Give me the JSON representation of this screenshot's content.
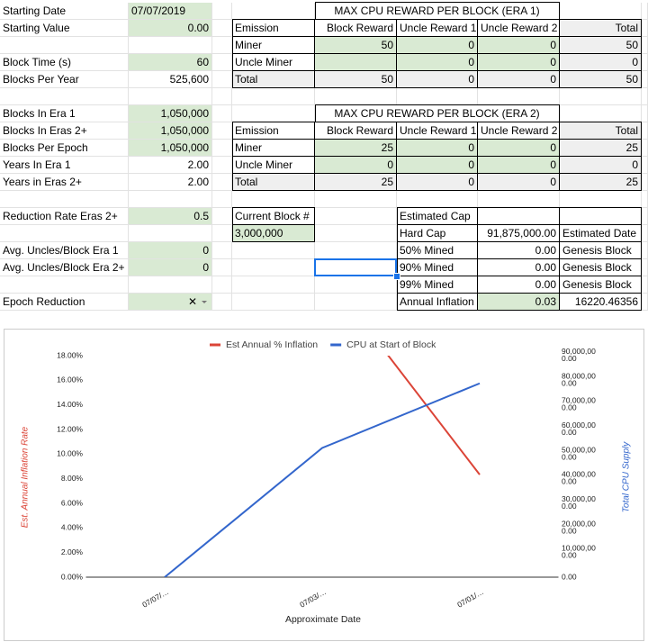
{
  "sheet": {
    "rows": [
      [
        "Starting Date",
        "07/07/2019",
        null,
        "MAX CPU REWARD PER BLOCK (ERA 1)",
        null,
        null,
        null
      ],
      [
        "Starting Value",
        "0.00",
        "Emission",
        "Block Reward",
        "Uncle Reward 1",
        "Uncle Reward 2",
        "Total"
      ],
      [
        null,
        null,
        "Miner",
        "50",
        "0",
        "0",
        "50"
      ],
      [
        "Block Time (s)",
        "60",
        "Uncle Miner",
        null,
        "0",
        "0",
        "0"
      ],
      [
        "Blocks Per Year",
        "525,600",
        "Total",
        "50",
        "0",
        "0",
        "50"
      ],
      [
        null,
        null,
        null,
        null,
        null,
        null,
        null
      ],
      [
        "Blocks In Era 1",
        "1,050,000",
        null,
        "MAX CPU REWARD PER BLOCK (ERA 2)",
        null,
        null,
        null
      ],
      [
        "Blocks In Eras 2+",
        "1,050,000",
        "Emission",
        "Block Reward",
        "Uncle Reward 1",
        "Uncle Reward 2",
        "Total"
      ],
      [
        "Blocks Per Epoch",
        "1,050,000",
        "Miner",
        "25",
        "0",
        "0",
        "25"
      ],
      [
        "Years In Era 1",
        "2.00",
        "Uncle Miner",
        "0",
        "0",
        "0",
        "0"
      ],
      [
        "Years in Eras 2+",
        "2.00",
        "Total",
        "25",
        "0",
        "0",
        "25"
      ],
      [
        null,
        null,
        null,
        null,
        null,
        null,
        null
      ],
      [
        "Reduction Rate Eras 2+",
        "0.5",
        "Current Block #",
        null,
        "Estimated Cap",
        null,
        null
      ],
      [
        null,
        null,
        "3,000,000",
        null,
        "Hard Cap",
        "91,875,000.00",
        "Estimated Date"
      ],
      [
        "Avg. Uncles/Block Era 1",
        "0",
        null,
        null,
        "50% Mined",
        "0.00",
        "Genesis Block"
      ],
      [
        "Avg. Uncles/Block Era 2+",
        "0",
        null,
        null,
        "90% Mined",
        "0.00",
        "Genesis Block"
      ],
      [
        null,
        null,
        null,
        null,
        "99% Mined",
        "0.00",
        "Genesis Block"
      ],
      [
        "Epoch Reduction",
        "✕",
        null,
        null,
        "Annual Inflation",
        "0.03",
        "16220.46356"
      ]
    ]
  },
  "chart_data": {
    "type": "line",
    "x_label": "Approximate Date",
    "y_label": "Est. Annual Inflation Rate",
    "y2_label": "Total CPU Supply",
    "categories": [
      "07/07/…",
      "07/03/…",
      "07/01/…"
    ],
    "series": [
      {
        "name": "Est Annual % Inflation",
        "color": "#db4437",
        "values": [
          null,
          25,
          8.33
        ]
      },
      {
        "name": "CPU at Start of Block",
        "color": "#3366cc",
        "axis": "y2",
        "values": [
          0,
          52500000,
          78750000
        ]
      }
    ],
    "ylim": [
      0,
      18
    ],
    "yticks": [
      {
        "value": 0,
        "label": "0.00%"
      },
      {
        "value": 2,
        "label": "2.00%"
      },
      {
        "value": 4,
        "label": "4.00%"
      },
      {
        "value": 6,
        "label": "6.00%"
      },
      {
        "value": 8,
        "label": "8.00%"
      },
      {
        "value": 10,
        "label": "10.00%"
      },
      {
        "value": 12,
        "label": "12.00%"
      },
      {
        "value": 14,
        "label": "14.00%"
      },
      {
        "value": 16,
        "label": "16.00%"
      },
      {
        "value": 18,
        "label": "18.00%"
      }
    ],
    "y2lim": [
      0,
      90000000
    ],
    "y2ticks": [
      {
        "value": 0,
        "label": "0.00"
      },
      {
        "value": 10000000,
        "label": "10,000,000.00"
      },
      {
        "value": 20000000,
        "label": "20,000,000.00"
      },
      {
        "value": 30000000,
        "label": "30,000,000.00"
      },
      {
        "value": 40000000,
        "label": "40,000,000.00"
      },
      {
        "value": 50000000,
        "label": "50,000,000.00"
      },
      {
        "value": 60000000,
        "label": "60,000,000.00"
      },
      {
        "value": 70000000,
        "label": "70,000,000.00"
      },
      {
        "value": 80000000,
        "label": "80,000,000.00"
      },
      {
        "value": 90000000,
        "label": "90,000,000.00"
      }
    ],
    "grid": false
  }
}
